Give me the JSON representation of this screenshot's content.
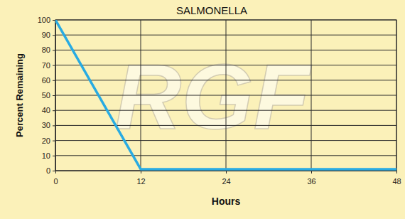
{
  "chart_data": {
    "type": "line",
    "title": "SALMONELLA",
    "x_label": "Hours",
    "y_label": "Percent Remaining",
    "annotations": [
      "RGF"
    ],
    "x": [
      0,
      12,
      48
    ],
    "values": [
      100,
      1,
      1
    ],
    "color": "#29abe2",
    "xlim": [
      0,
      48
    ],
    "xticks": [
      0,
      12,
      24,
      36,
      48
    ],
    "ylim": [
      0,
      100
    ],
    "yticks": [
      0,
      10,
      20,
      30,
      40,
      50,
      60,
      70,
      80,
      90,
      100
    ],
    "grid": true
  }
}
